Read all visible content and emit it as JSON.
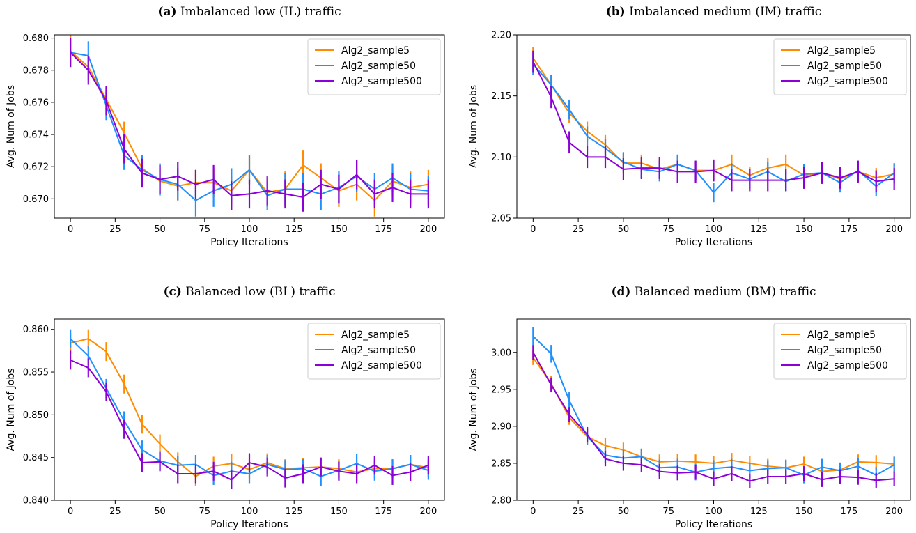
{
  "series_colors": {
    "Alg2_sample5": "#FF8C00",
    "Alg2_sample50": "#1E90FF",
    "Alg2_sample500": "#8B00D6"
  },
  "chart_data": [
    {
      "type": "line",
      "title_tag": "(a)",
      "title": "Imbalanced low (IL) traffic",
      "xlabel": "Policy Iterations",
      "ylabel": "Avg. Num of Jobs",
      "xlim": [
        -9,
        209
      ],
      "ylim": [
        0.6688,
        0.6802
      ],
      "xticks": [
        0,
        25,
        50,
        75,
        100,
        125,
        150,
        175,
        200
      ],
      "yticks": [
        0.67,
        0.672,
        0.674,
        0.676,
        0.678,
        0.68
      ],
      "ytick_labels": [
        "0.670",
        "0.672",
        "0.674",
        "0.676",
        "0.678",
        "0.680"
      ],
      "legend": "top-right",
      "x": [
        0,
        10,
        20,
        30,
        40,
        50,
        60,
        70,
        80,
        90,
        100,
        110,
        120,
        130,
        140,
        150,
        160,
        170,
        180,
        190,
        200
      ],
      "series": [
        {
          "name": "Alg2_sample5",
          "values": [
            0.6792,
            0.6782,
            0.6762,
            0.6741,
            0.6719,
            0.6711,
            0.6708,
            0.671,
            0.671,
            0.6705,
            0.6718,
            0.6704,
            0.6706,
            0.6721,
            0.6713,
            0.6705,
            0.6709,
            0.6699,
            0.6711,
            0.6707,
            0.6709
          ],
          "errors": [
            0.001,
            0.0008,
            0.0007,
            0.0007,
            0.0007,
            0.0008,
            0.0009,
            0.0008,
            0.0009,
            0.0009,
            0.0009,
            0.0009,
            0.0011,
            0.0009,
            0.0009,
            0.001,
            0.001,
            0.001,
            0.0009,
            0.001,
            0.0009
          ]
        },
        {
          "name": "Alg2_sample50",
          "values": [
            0.6791,
            0.6789,
            0.6758,
            0.6727,
            0.6718,
            0.6712,
            0.6709,
            0.6699,
            0.6705,
            0.6709,
            0.6718,
            0.6702,
            0.6706,
            0.6706,
            0.6703,
            0.6707,
            0.6714,
            0.6706,
            0.6713,
            0.6706,
            0.6705
          ],
          "errors": [
            0.0009,
            0.0009,
            0.0009,
            0.0009,
            0.0009,
            0.001,
            0.001,
            0.001,
            0.001,
            0.001,
            0.0009,
            0.0009,
            0.001,
            0.001,
            0.001,
            0.001,
            0.001,
            0.001,
            0.0009,
            0.001,
            0.0009
          ]
        },
        {
          "name": "Alg2_sample500",
          "values": [
            0.6791,
            0.678,
            0.6761,
            0.6731,
            0.6716,
            0.6712,
            0.6714,
            0.6709,
            0.6712,
            0.6702,
            0.6703,
            0.6705,
            0.6703,
            0.6701,
            0.6709,
            0.6706,
            0.6715,
            0.6703,
            0.6707,
            0.6703,
            0.6703
          ],
          "errors": [
            0.0009,
            0.0009,
            0.0009,
            0.0009,
            0.0009,
            0.0009,
            0.0009,
            0.0009,
            0.0009,
            0.0009,
            0.0009,
            0.0009,
            0.0009,
            0.0009,
            0.0009,
            0.0009,
            0.0009,
            0.0009,
            0.0009,
            0.0009,
            0.0009
          ]
        }
      ]
    },
    {
      "type": "line",
      "title_tag": "(b)",
      "title": "Imbalanced medium (IM) traffic",
      "xlabel": "Policy Iterations",
      "ylabel": "Avg. Num of Jobs",
      "xlim": [
        -9,
        209
      ],
      "ylim": [
        2.05,
        2.2
      ],
      "xticks": [
        0,
        25,
        50,
        75,
        100,
        125,
        150,
        175,
        200
      ],
      "yticks": [
        2.05,
        2.1,
        2.15,
        2.2
      ],
      "ytick_labels": [
        "2.05",
        "2.10",
        "2.15",
        "2.20"
      ],
      "legend": "top-right",
      "x": [
        0,
        10,
        20,
        30,
        40,
        50,
        60,
        70,
        80,
        90,
        100,
        110,
        120,
        130,
        140,
        150,
        160,
        170,
        180,
        190,
        200
      ],
      "series": [
        {
          "name": "Alg2_sample5",
          "values": [
            2.181,
            2.159,
            2.136,
            2.121,
            2.11,
            2.095,
            2.095,
            2.09,
            2.094,
            2.089,
            2.089,
            2.094,
            2.085,
            2.091,
            2.094,
            2.085,
            2.087,
            2.082,
            2.088,
            2.083,
            2.086
          ],
          "errors": [
            0.009,
            0.008,
            0.008,
            0.008,
            0.008,
            0.008,
            0.007,
            0.008,
            0.008,
            0.008,
            0.008,
            0.008,
            0.007,
            0.008,
            0.008,
            0.008,
            0.008,
            0.008,
            0.008,
            0.008,
            0.008
          ]
        },
        {
          "name": "Alg2_sample50",
          "values": [
            2.176,
            2.159,
            2.139,
            2.117,
            2.107,
            2.096,
            2.09,
            2.088,
            2.094,
            2.089,
            2.071,
            2.087,
            2.082,
            2.088,
            2.08,
            2.086,
            2.087,
            2.079,
            2.089,
            2.076,
            2.087
          ],
          "errors": [
            0.009,
            0.008,
            0.008,
            0.008,
            0.008,
            0.008,
            0.008,
            0.008,
            0.008,
            0.008,
            0.008,
            0.008,
            0.008,
            0.008,
            0.008,
            0.008,
            0.008,
            0.008,
            0.008,
            0.008,
            0.008
          ]
        },
        {
          "name": "Alg2_sample500",
          "values": [
            2.178,
            2.149,
            2.112,
            2.1,
            2.1,
            2.09,
            2.091,
            2.091,
            2.088,
            2.088,
            2.089,
            2.081,
            2.081,
            2.081,
            2.081,
            2.083,
            2.087,
            2.083,
            2.088,
            2.08,
            2.082
          ],
          "errors": [
            0.009,
            0.009,
            0.009,
            0.009,
            0.009,
            0.009,
            0.009,
            0.009,
            0.009,
            0.009,
            0.009,
            0.009,
            0.009,
            0.009,
            0.009,
            0.009,
            0.009,
            0.009,
            0.009,
            0.009,
            0.009
          ]
        }
      ]
    },
    {
      "type": "line",
      "title_tag": "(c)",
      "title": "Balanced low (BL) traffic",
      "xlabel": "Policy Iterations",
      "ylabel": "Avg. Num of Jobs",
      "xlim": [
        -9,
        209
      ],
      "ylim": [
        0.84,
        0.8612
      ],
      "xticks": [
        0,
        25,
        50,
        75,
        100,
        125,
        150,
        175,
        200
      ],
      "yticks": [
        0.84,
        0.845,
        0.85,
        0.855,
        0.86
      ],
      "ytick_labels": [
        "0.840",
        "0.845",
        "0.850",
        "0.855",
        "0.860"
      ],
      "legend": "top-right",
      "x": [
        0,
        10,
        20,
        30,
        40,
        50,
        60,
        70,
        80,
        90,
        100,
        110,
        120,
        130,
        140,
        150,
        160,
        170,
        180,
        190,
        200
      ],
      "series": [
        {
          "name": "Alg2_sample5",
          "values": [
            0.8584,
            0.8589,
            0.8574,
            0.8536,
            0.8489,
            0.8466,
            0.8445,
            0.8428,
            0.844,
            0.8443,
            0.8436,
            0.8444,
            0.8437,
            0.8438,
            0.8439,
            0.8437,
            0.8433,
            0.8437,
            0.8437,
            0.8442,
            0.8438
          ],
          "errors": [
            0.0011,
            0.0011,
            0.0011,
            0.0011,
            0.0011,
            0.0011,
            0.0011,
            0.0011,
            0.0011,
            0.0011,
            0.0011,
            0.0011,
            0.0011,
            0.0011,
            0.0011,
            0.0011,
            0.0011,
            0.0011,
            0.0011,
            0.0011,
            0.0011
          ]
        },
        {
          "name": "Alg2_sample50",
          "values": [
            0.8589,
            0.8569,
            0.8531,
            0.8493,
            0.8459,
            0.8446,
            0.8441,
            0.8442,
            0.8429,
            0.8434,
            0.8431,
            0.8442,
            0.8436,
            0.8437,
            0.8428,
            0.8435,
            0.8443,
            0.8434,
            0.8437,
            0.8442,
            0.8435
          ],
          "errors": [
            0.0011,
            0.0011,
            0.0011,
            0.0011,
            0.0011,
            0.0011,
            0.0011,
            0.0011,
            0.0011,
            0.0011,
            0.0011,
            0.0011,
            0.0011,
            0.0011,
            0.0011,
            0.0011,
            0.0011,
            0.0011,
            0.0011,
            0.0011,
            0.0011
          ]
        },
        {
          "name": "Alg2_sample500",
          "values": [
            0.8564,
            0.8555,
            0.8527,
            0.8483,
            0.8444,
            0.8445,
            0.8431,
            0.8431,
            0.8434,
            0.8424,
            0.8444,
            0.8439,
            0.8426,
            0.8431,
            0.8439,
            0.8434,
            0.8431,
            0.8441,
            0.8429,
            0.8433,
            0.8441
          ],
          "errors": [
            0.0011,
            0.0011,
            0.0011,
            0.0011,
            0.0011,
            0.0011,
            0.0011,
            0.0011,
            0.0011,
            0.0011,
            0.0011,
            0.0011,
            0.0011,
            0.0011,
            0.0011,
            0.0011,
            0.0011,
            0.0011,
            0.0011,
            0.0011,
            0.0011
          ]
        }
      ]
    },
    {
      "type": "line",
      "title_tag": "(d)",
      "title": "Balanced medium (BM) traffic",
      "xlabel": "Policy Iterations",
      "ylabel": "Avg. Num of Jobs",
      "xlim": [
        -9,
        209
      ],
      "ylim": [
        2.8,
        3.045
      ],
      "xticks": [
        0,
        25,
        50,
        75,
        100,
        125,
        150,
        175,
        200
      ],
      "yticks": [
        2.8,
        2.85,
        2.9,
        2.95,
        3.0
      ],
      "ytick_labels": [
        "2.80",
        "2.85",
        "2.90",
        "2.95",
        "3.00"
      ],
      "legend": "top-right",
      "x": [
        0,
        10,
        20,
        30,
        40,
        50,
        60,
        70,
        80,
        90,
        100,
        110,
        120,
        130,
        140,
        150,
        160,
        170,
        180,
        190,
        200
      ],
      "series": [
        {
          "name": "Alg2_sample5",
          "values": [
            2.993,
            2.958,
            2.912,
            2.886,
            2.874,
            2.868,
            2.859,
            2.852,
            2.853,
            2.852,
            2.85,
            2.854,
            2.85,
            2.846,
            2.844,
            2.849,
            2.839,
            2.841,
            2.852,
            2.851,
            2.849
          ],
          "errors": [
            0.01,
            0.01,
            0.01,
            0.01,
            0.01,
            0.01,
            0.01,
            0.01,
            0.01,
            0.01,
            0.01,
            0.01,
            0.01,
            0.01,
            0.01,
            0.01,
            0.01,
            0.01,
            0.01,
            0.01,
            0.01
          ]
        },
        {
          "name": "Alg2_sample50",
          "values": [
            3.022,
            2.998,
            2.935,
            2.886,
            2.861,
            2.857,
            2.859,
            2.844,
            2.845,
            2.838,
            2.843,
            2.845,
            2.84,
            2.843,
            2.844,
            2.834,
            2.845,
            2.84,
            2.846,
            2.834,
            2.848
          ],
          "errors": [
            0.012,
            0.012,
            0.011,
            0.011,
            0.011,
            0.011,
            0.011,
            0.011,
            0.011,
            0.011,
            0.011,
            0.011,
            0.011,
            0.011,
            0.011,
            0.011,
            0.011,
            0.011,
            0.011,
            0.011,
            0.011
          ]
        },
        {
          "name": "Alg2_sample500",
          "values": [
            3.0,
            2.956,
            2.916,
            2.889,
            2.856,
            2.85,
            2.848,
            2.839,
            2.837,
            2.838,
            2.829,
            2.836,
            2.826,
            2.832,
            2.832,
            2.836,
            2.828,
            2.832,
            2.831,
            2.827,
            2.829
          ],
          "errors": [
            0.01,
            0.01,
            0.01,
            0.01,
            0.01,
            0.01,
            0.01,
            0.01,
            0.01,
            0.01,
            0.01,
            0.01,
            0.01,
            0.01,
            0.01,
            0.01,
            0.01,
            0.01,
            0.01,
            0.01,
            0.01
          ]
        }
      ]
    }
  ]
}
